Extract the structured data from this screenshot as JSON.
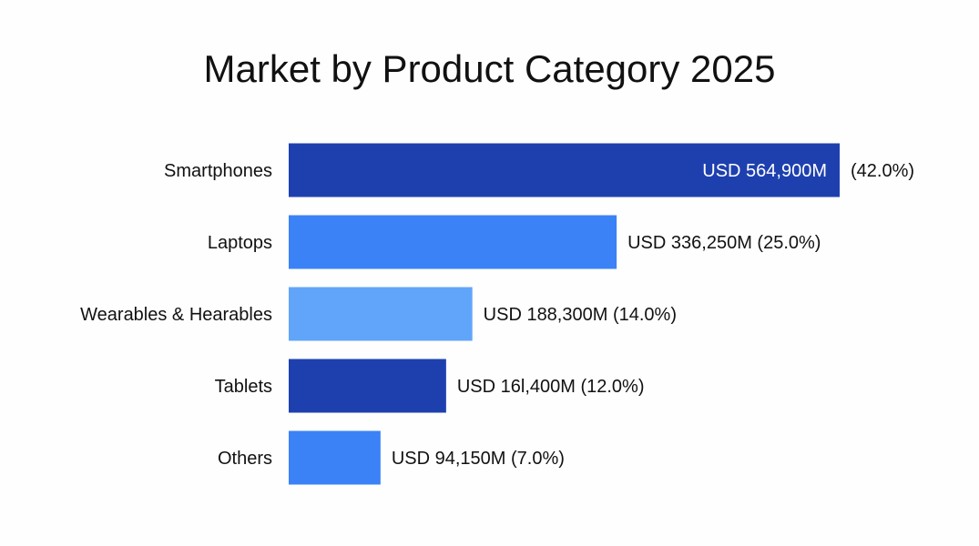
{
  "chart_data": {
    "type": "bar",
    "orientation": "horizontal",
    "title": "Market by Product Category 2025",
    "categories": [
      "Smartphones",
      "Laptops",
      "Wearables & Hearables",
      "Tablets",
      "Others"
    ],
    "values": [
      564900,
      336250,
      188300,
      161400,
      94150
    ],
    "units": "USD M",
    "percent": [
      42.0,
      25.0,
      14.0,
      12.0,
      7.0
    ],
    "data_labels": [
      {
        "value": "USD 564,900M",
        "pct": "(42.0%)"
      },
      {
        "value": "USD 336,250M",
        "pct": "(25.0%)"
      },
      {
        "value": "USD 188,300M",
        "pct": "(14.0%)"
      },
      {
        "value": "USD 16l,400M",
        "pct": "(12.0%)"
      },
      {
        "value": "USD 94,150M",
        "pct": "(7.0%)"
      }
    ],
    "colors": [
      "#1e40af",
      "#3b82f6",
      "#60a5fa",
      "#1e40af",
      "#3b82f6"
    ],
    "grid": false,
    "legend": "none"
  }
}
